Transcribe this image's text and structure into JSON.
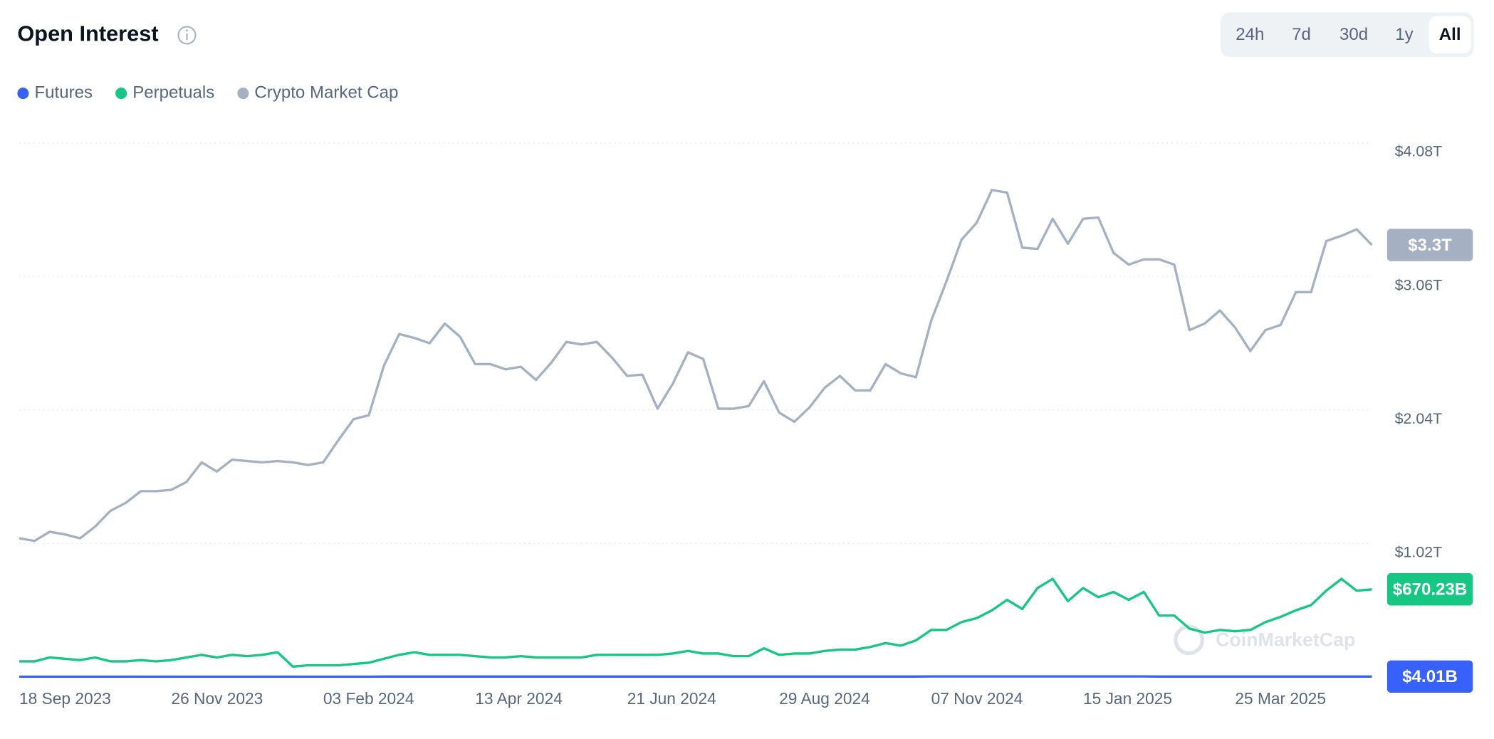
{
  "title": "Open Interest",
  "range_buttons": [
    "24h",
    "7d",
    "30d",
    "1y",
    "All"
  ],
  "selected_range": "All",
  "watermark": "CoinMarketCap",
  "chart_data": {
    "type": "line",
    "categories": [
      "18 Sep 2023",
      null,
      null,
      null,
      null,
      null,
      null,
      null,
      null,
      null,
      "26 Nov 2023",
      null,
      null,
      null,
      null,
      null,
      null,
      null,
      null,
      null,
      "03 Feb 2024",
      null,
      null,
      null,
      null,
      null,
      null,
      null,
      null,
      null,
      "13 Apr 2024",
      null,
      null,
      null,
      null,
      null,
      null,
      null,
      null,
      null,
      "21 Jun 2024",
      null,
      null,
      null,
      null,
      null,
      null,
      null,
      null,
      null,
      "29 Aug 2024",
      null,
      null,
      null,
      null,
      null,
      null,
      null,
      null,
      null,
      "07 Nov 2024",
      null,
      null,
      null,
      null,
      null,
      null,
      null,
      null,
      null,
      "15 Jan 2025",
      null,
      null,
      null,
      null,
      null,
      null,
      null,
      null,
      null,
      "25 Mar 2025",
      null,
      null,
      null,
      null,
      null,
      null,
      null,
      null,
      null
    ],
    "ylim": [
      0,
      4.08
    ],
    "yticks": [
      {
        "value": 1.02,
        "label": "$1.02T"
      },
      {
        "value": 2.04,
        "label": "$2.04T"
      },
      {
        "value": 3.06,
        "label": "$3.06T"
      },
      {
        "value": 4.08,
        "label": "$4.08T"
      }
    ],
    "grid": true,
    "legend": "top-left",
    "series": [
      {
        "name": "Futures",
        "color": "#3861fb",
        "values": [
          0.003,
          0.003,
          0.003,
          0.003,
          0.003,
          0.003,
          0.003,
          0.003,
          0.003,
          0.003,
          0.003,
          0.003,
          0.003,
          0.003,
          0.003,
          0.003,
          0.003,
          0.003,
          0.003,
          0.003,
          0.003,
          0.003,
          0.003,
          0.003,
          0.004,
          0.004,
          0.004,
          0.004,
          0.004,
          0.004,
          0.004,
          0.004,
          0.004,
          0.004,
          0.004,
          0.004,
          0.004,
          0.004,
          0.004,
          0.004,
          0.004,
          0.004,
          0.004,
          0.004,
          0.004,
          0.004,
          0.004,
          0.004,
          0.004,
          0.004,
          0.004,
          0.004,
          0.004,
          0.004,
          0.004,
          0.004,
          0.004,
          0.004,
          0.004,
          0.004,
          0.005,
          0.005,
          0.005,
          0.005,
          0.005,
          0.005,
          0.005,
          0.005,
          0.005,
          0.005,
          0.005,
          0.005,
          0.005,
          0.005,
          0.005,
          0.004,
          0.004,
          0.004,
          0.004,
          0.004,
          0.004,
          0.004,
          0.004,
          0.004,
          0.004,
          0.004,
          0.004,
          0.004,
          0.004,
          0.00401
        ],
        "value_labels": [
          null,
          null,
          null,
          null,
          null,
          null,
          null,
          null,
          null,
          null,
          null,
          null,
          null,
          null,
          null,
          null,
          null,
          null,
          null,
          null,
          null,
          null,
          null,
          null,
          null,
          null,
          null,
          null,
          null,
          null,
          null,
          null,
          null,
          null,
          null,
          null,
          null,
          null,
          null,
          null,
          null,
          null,
          null,
          null,
          null,
          null,
          null,
          null,
          null,
          null,
          null,
          null,
          null,
          null,
          null,
          null,
          null,
          null,
          null,
          null,
          null,
          null,
          null,
          null,
          null,
          null,
          null,
          null,
          null,
          null,
          null,
          null,
          null,
          null,
          null,
          null,
          null,
          null,
          null,
          null,
          null,
          null,
          null,
          null,
          null,
          null,
          null,
          null,
          null,
          "$4.01B"
        ]
      },
      {
        "name": "Perpetuals",
        "color": "#16c784",
        "values": [
          0.12,
          0.12,
          0.15,
          0.14,
          0.13,
          0.15,
          0.12,
          0.12,
          0.13,
          0.12,
          0.13,
          0.15,
          0.17,
          0.15,
          0.17,
          0.16,
          0.17,
          0.19,
          0.08,
          0.09,
          0.09,
          0.09,
          0.1,
          0.11,
          0.14,
          0.17,
          0.19,
          0.17,
          0.17,
          0.17,
          0.16,
          0.15,
          0.15,
          0.16,
          0.15,
          0.15,
          0.15,
          0.15,
          0.17,
          0.17,
          0.17,
          0.17,
          0.17,
          0.18,
          0.2,
          0.18,
          0.18,
          0.16,
          0.16,
          0.22,
          0.17,
          0.18,
          0.18,
          0.2,
          0.21,
          0.21,
          0.23,
          0.26,
          0.24,
          0.28,
          0.36,
          0.36,
          0.42,
          0.45,
          0.51,
          0.59,
          0.52,
          0.68,
          0.75,
          0.58,
          0.68,
          0.61,
          0.65,
          0.59,
          0.65,
          0.47,
          0.47,
          0.37,
          0.34,
          0.36,
          0.35,
          0.36,
          0.42,
          0.46,
          0.51,
          0.55,
          0.66,
          0.75,
          0.66,
          0.67023
        ],
        "value_labels": [
          null,
          null,
          null,
          null,
          null,
          null,
          null,
          null,
          null,
          null,
          null,
          null,
          null,
          null,
          null,
          null,
          null,
          null,
          null,
          null,
          null,
          null,
          null,
          null,
          null,
          null,
          null,
          null,
          null,
          null,
          null,
          null,
          null,
          null,
          null,
          null,
          null,
          null,
          null,
          null,
          null,
          null,
          null,
          null,
          null,
          null,
          null,
          null,
          null,
          null,
          null,
          null,
          null,
          null,
          null,
          null,
          null,
          null,
          null,
          null,
          null,
          null,
          null,
          null,
          null,
          null,
          null,
          null,
          null,
          null,
          null,
          null,
          null,
          null,
          null,
          null,
          null,
          null,
          null,
          null,
          null,
          null,
          null,
          null,
          null,
          null,
          null,
          null,
          null,
          "$670.23B"
        ]
      },
      {
        "name": "Crypto Market Cap",
        "color": "#a6b0c3",
        "values": [
          1.06,
          1.04,
          1.11,
          1.09,
          1.06,
          1.15,
          1.27,
          1.33,
          1.42,
          1.42,
          1.43,
          1.49,
          1.64,
          1.57,
          1.66,
          1.65,
          1.64,
          1.65,
          1.64,
          1.62,
          1.64,
          1.81,
          1.97,
          2.0,
          2.38,
          2.62,
          2.59,
          2.55,
          2.7,
          2.6,
          2.39,
          2.39,
          2.35,
          2.37,
          2.27,
          2.4,
          2.56,
          2.54,
          2.56,
          2.44,
          2.3,
          2.31,
          2.05,
          2.24,
          2.48,
          2.43,
          2.05,
          2.05,
          2.07,
          2.26,
          2.02,
          1.95,
          2.06,
          2.21,
          2.3,
          2.19,
          2.19,
          2.39,
          2.32,
          2.29,
          2.72,
          3.02,
          3.34,
          3.47,
          3.72,
          3.7,
          3.28,
          3.27,
          3.5,
          3.31,
          3.5,
          3.51,
          3.24,
          3.15,
          3.19,
          3.19,
          3.15,
          2.65,
          2.7,
          2.8,
          2.67,
          2.49,
          2.65,
          2.69,
          2.94,
          2.94,
          3.33,
          3.37,
          3.42,
          3.3
        ],
        "value_labels": [
          null,
          null,
          null,
          null,
          null,
          null,
          null,
          null,
          null,
          null,
          null,
          null,
          null,
          null,
          null,
          null,
          null,
          null,
          null,
          null,
          null,
          null,
          null,
          null,
          null,
          null,
          null,
          null,
          null,
          null,
          null,
          null,
          null,
          null,
          null,
          null,
          null,
          null,
          null,
          null,
          null,
          null,
          null,
          null,
          null,
          null,
          null,
          null,
          null,
          null,
          null,
          null,
          null,
          null,
          null,
          null,
          null,
          null,
          null,
          null,
          null,
          null,
          null,
          null,
          null,
          null,
          null,
          null,
          null,
          null,
          null,
          null,
          null,
          null,
          null,
          null,
          null,
          null,
          null,
          null,
          null,
          null,
          null,
          null,
          null,
          null,
          null,
          null,
          null,
          "$3.3T"
        ]
      }
    ]
  }
}
